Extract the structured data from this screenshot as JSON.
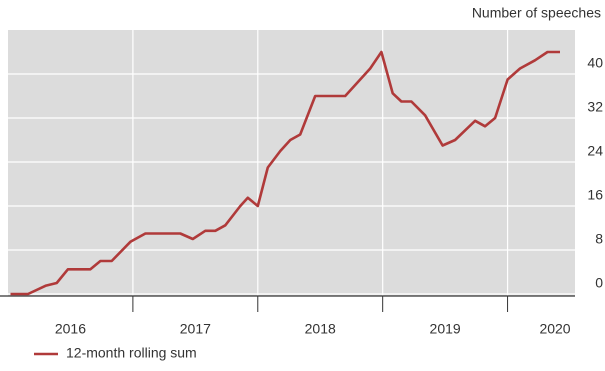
{
  "chart_data": {
    "type": "line",
    "y_axis_label": "Number of speeches",
    "x": [
      2016.02,
      2016.16,
      2016.3,
      2016.39,
      2016.48,
      2016.66,
      2016.74,
      2016.83,
      2016.98,
      2017.1,
      2017.38,
      2017.48,
      2017.58,
      2017.66,
      2017.74,
      2017.86,
      2017.92,
      2018.0,
      2018.08,
      2018.18,
      2018.26,
      2018.34,
      2018.46,
      2018.7,
      2018.82,
      2018.9,
      2018.99,
      2019.08,
      2019.15,
      2019.23,
      2019.34,
      2019.48,
      2019.58,
      2019.74,
      2019.82,
      2019.9,
      2020.0,
      2020.1,
      2020.22,
      2020.32,
      2020.42
    ],
    "series": [
      {
        "name": "12-month rolling sum",
        "color": "#b03a3a",
        "values": [
          0,
          0,
          1.5,
          2,
          4.5,
          4.5,
          6,
          6,
          9.5,
          11,
          11,
          10,
          11.5,
          11.5,
          12.5,
          16,
          17.5,
          16,
          23,
          26,
          28,
          29,
          36,
          36,
          39,
          41,
          44,
          36.5,
          35,
          35,
          32.5,
          27,
          28,
          31.5,
          30.5,
          32,
          39,
          41,
          42.5,
          44,
          44
        ]
      }
    ],
    "xlim": [
      2016.0,
      2020.54
    ],
    "xticks": [
      {
        "value": 2016.5,
        "label": "2016"
      },
      {
        "value": 2017.5,
        "label": "2017"
      },
      {
        "value": 2018.5,
        "label": "2018"
      },
      {
        "value": 2019.5,
        "label": "2019"
      },
      {
        "value": 2020.38,
        "label": "2020"
      }
    ],
    "xgrid": [
      2017,
      2018,
      2019,
      2020
    ],
    "ylim": [
      0,
      48
    ],
    "yticks": [
      0,
      8,
      16,
      24,
      32,
      40
    ],
    "grid": true
  }
}
